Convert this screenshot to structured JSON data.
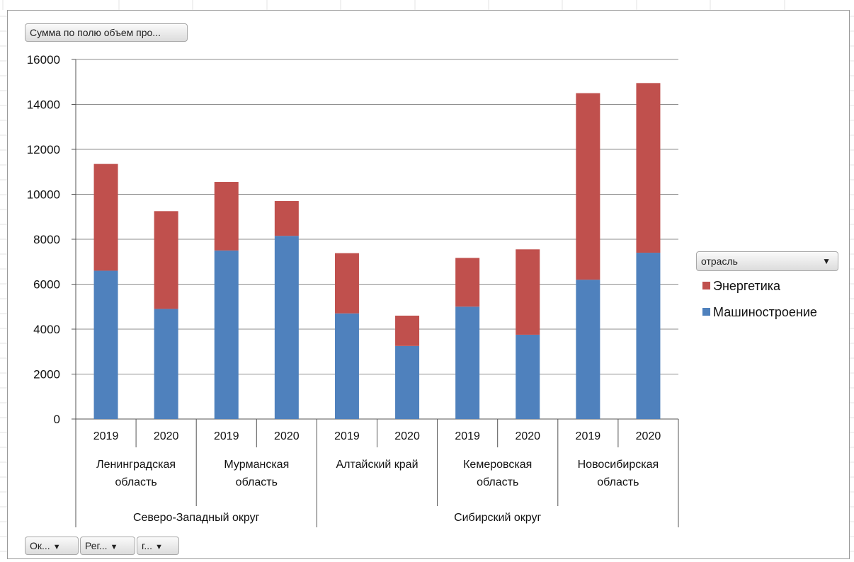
{
  "value_field_button": "Сумма по полю объем про...",
  "legend_filter": {
    "label": "отрасль",
    "arrow": "▼"
  },
  "axis_field_buttons": [
    {
      "label": "Ок...",
      "arrow": "▼"
    },
    {
      "label": "Рег...",
      "arrow": "▼"
    },
    {
      "label": "г...",
      "arrow": "▼"
    }
  ],
  "colors": {
    "Машиностроение": "#4f81bd",
    "Энергетика": "#c0504d",
    "grid": "#8c8c8c"
  },
  "chart_data": {
    "type": "bar",
    "stacked": true,
    "ylim": [
      0,
      16000
    ],
    "yticks": [
      0,
      2000,
      4000,
      6000,
      8000,
      10000,
      12000,
      14000,
      16000
    ],
    "grid": true,
    "legend_position": "right",
    "districts": [
      {
        "name": "Северо-Западный округ",
        "regions": [
          {
            "name": [
              "Ленинградская",
              "область"
            ],
            "years": [
              "2019",
              "2020"
            ]
          },
          {
            "name": [
              "Мурманская",
              "область"
            ],
            "years": [
              "2019",
              "2020"
            ]
          }
        ]
      },
      {
        "name": "Сибирский округ",
        "regions": [
          {
            "name": [
              "Алтайский край"
            ],
            "years": [
              "2019",
              "2020"
            ]
          },
          {
            "name": [
              "Кемеровская",
              "область"
            ],
            "years": [
              "2019",
              "2020"
            ]
          },
          {
            "name": [
              "Новосибирская",
              "область"
            ],
            "years": [
              "2019",
              "2020"
            ]
          }
        ]
      }
    ],
    "series": [
      {
        "name": "Машиностроение",
        "values": [
          6600,
          4900,
          7500,
          8150,
          4700,
          3250,
          5000,
          3750,
          6200,
          7400
        ]
      },
      {
        "name": "Энергетика",
        "values": [
          4750,
          4350,
          3050,
          1550,
          2680,
          1350,
          2170,
          3800,
          8300,
          7550
        ]
      }
    ],
    "legend": [
      "Энергетика",
      "Машиностроение"
    ]
  }
}
